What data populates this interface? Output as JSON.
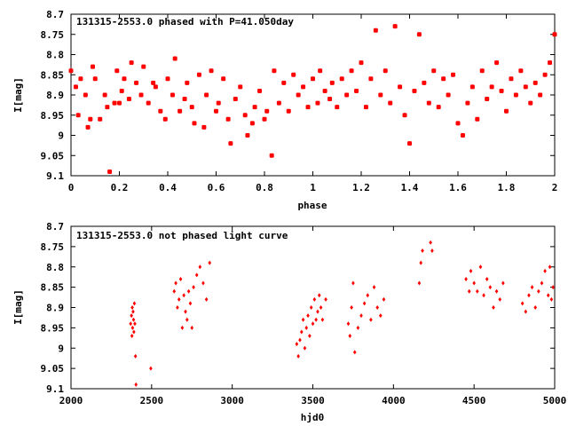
{
  "colors": {
    "point": "#ff0000",
    "axis": "#000000",
    "background": "#ffffff"
  },
  "chart_data": [
    {
      "type": "scatter",
      "title": "131315-2553.0 phased with P=41.050day",
      "xlabel": "phase",
      "ylabel": "I[mag]",
      "xlim": [
        0,
        2
      ],
      "ylim": [
        9.1,
        8.7
      ],
      "y_inverted": true,
      "grid": false,
      "legend": "none",
      "marker": "filled circle",
      "xticks": [
        "0",
        "0.2",
        "0.4",
        "0.6",
        "0.8",
        "1",
        "1.2",
        "1.4",
        "1.6",
        "1.8",
        "2"
      ],
      "yticks": [
        "8.7",
        "8.75",
        "8.8",
        "8.85",
        "8.9",
        "8.95",
        "9",
        "9.05",
        "9.1"
      ],
      "series": [
        {
          "x": [
            0.0,
            0.02,
            0.03,
            0.04,
            0.06,
            0.07,
            0.08,
            0.09,
            0.1,
            0.12,
            0.14,
            0.15,
            0.16,
            0.18,
            0.19,
            0.2,
            0.21,
            0.22,
            0.24,
            0.25,
            0.27,
            0.29,
            0.3,
            0.32,
            0.34,
            0.35,
            0.37,
            0.39,
            0.4,
            0.42,
            0.43,
            0.45,
            0.47,
            0.48,
            0.5,
            0.51,
            0.53,
            0.55,
            0.56,
            0.58,
            0.6,
            0.61,
            0.63,
            0.65,
            0.66,
            0.68,
            0.7,
            0.72,
            0.73,
            0.75,
            0.76,
            0.78,
            0.8,
            0.81,
            0.83,
            0.84,
            0.86,
            0.88,
            0.9,
            0.92,
            0.94,
            0.96,
            0.98,
            1.0,
            1.02,
            1.03,
            1.05,
            1.07,
            1.08,
            1.1,
            1.12,
            1.14,
            1.16,
            1.18,
            1.2,
            1.22,
            1.24,
            1.26,
            1.28,
            1.3,
            1.32,
            1.34,
            1.36,
            1.38,
            1.4,
            1.42,
            1.44,
            1.46,
            1.48,
            1.5,
            1.52,
            1.54,
            1.56,
            1.58,
            1.6,
            1.62,
            1.64,
            1.66,
            1.68,
            1.7,
            1.72,
            1.74,
            1.76,
            1.78,
            1.8,
            1.82,
            1.84,
            1.86,
            1.88,
            1.9,
            1.92,
            1.94,
            1.96,
            1.98,
            2.0
          ],
          "y": [
            8.84,
            8.88,
            8.95,
            8.86,
            8.9,
            8.98,
            8.96,
            8.83,
            8.86,
            8.96,
            8.9,
            8.93,
            9.09,
            8.92,
            8.84,
            8.92,
            8.89,
            8.86,
            8.91,
            8.82,
            8.87,
            8.9,
            8.83,
            8.92,
            8.87,
            8.88,
            8.94,
            8.96,
            8.86,
            8.9,
            8.81,
            8.94,
            8.91,
            8.87,
            8.93,
            8.97,
            8.85,
            8.98,
            8.9,
            8.84,
            8.94,
            8.92,
            8.86,
            8.96,
            9.02,
            8.91,
            8.88,
            8.95,
            9.0,
            8.97,
            8.93,
            8.89,
            8.96,
            8.94,
            9.05,
            8.84,
            8.92,
            8.87,
            8.94,
            8.85,
            8.9,
            8.88,
            8.93,
            8.86,
            8.92,
            8.84,
            8.89,
            8.91,
            8.87,
            8.93,
            8.86,
            8.9,
            8.84,
            8.89,
            8.82,
            8.93,
            8.86,
            8.74,
            8.9,
            8.84,
            8.92,
            8.73,
            8.88,
            8.95,
            9.02,
            8.89,
            8.75,
            8.87,
            8.92,
            8.84,
            8.93,
            8.86,
            8.9,
            8.85,
            8.97,
            9.0,
            8.92,
            8.88,
            8.96,
            8.84,
            8.91,
            8.88,
            8.82,
            8.89,
            8.94,
            8.86,
            8.9,
            8.84,
            8.88,
            8.92,
            8.87,
            8.9,
            8.85,
            8.82,
            8.75
          ]
        }
      ]
    },
    {
      "type": "scatter",
      "title": "131315-2553.0 not phased light curve",
      "xlabel": "hjd0",
      "ylabel": "I[mag]",
      "xlim": [
        2000,
        5000
      ],
      "ylim": [
        9.1,
        8.7
      ],
      "y_inverted": true,
      "grid": false,
      "legend": "none",
      "marker": "small diamond",
      "xticks": [
        "2000",
        "2500",
        "3000",
        "3500",
        "4000",
        "4500",
        "5000"
      ],
      "yticks": [
        "8.7",
        "8.75",
        "8.8",
        "8.85",
        "8.9",
        "8.95",
        "9",
        "9.05",
        "9.1"
      ],
      "series": [
        {
          "x": [
            2370,
            2375,
            2378,
            2380,
            2382,
            2385,
            2388,
            2390,
            2393,
            2396,
            2400,
            2403,
            2495,
            2640,
            2650,
            2660,
            2670,
            2680,
            2690,
            2700,
            2710,
            2720,
            2730,
            2740,
            2750,
            2760,
            2780,
            2800,
            2820,
            2840,
            2860,
            3400,
            3410,
            3420,
            3430,
            3440,
            3450,
            3460,
            3470,
            3480,
            3490,
            3500,
            3510,
            3520,
            3530,
            3540,
            3550,
            3560,
            3580,
            3720,
            3730,
            3740,
            3750,
            3760,
            3780,
            3800,
            3820,
            3840,
            3860,
            3880,
            3900,
            3920,
            3940,
            4160,
            4170,
            4180,
            4230,
            4240,
            4450,
            4470,
            4480,
            4500,
            4520,
            4540,
            4560,
            4580,
            4600,
            4620,
            4640,
            4660,
            4680,
            4800,
            4820,
            4840,
            4860,
            4880,
            4900,
            4920,
            4940,
            4960,
            4970,
            4980,
            4990
          ],
          "y": [
            8.94,
            8.92,
            8.97,
            8.9,
            8.95,
            8.91,
            8.93,
            8.96,
            8.89,
            8.94,
            9.02,
            9.09,
            9.05,
            8.86,
            8.84,
            8.9,
            8.88,
            8.83,
            8.95,
            8.87,
            8.91,
            8.93,
            8.86,
            8.89,
            8.95,
            8.85,
            8.82,
            8.8,
            8.84,
            8.88,
            8.79,
            8.99,
            9.02,
            8.98,
            8.96,
            8.93,
            9.0,
            8.95,
            8.92,
            8.97,
            8.9,
            8.94,
            8.88,
            8.93,
            8.91,
            8.87,
            8.9,
            8.93,
            8.88,
            8.94,
            8.97,
            8.9,
            8.84,
            9.01,
            8.95,
            8.92,
            8.89,
            8.87,
            8.93,
            8.85,
            8.9,
            8.92,
            8.88,
            8.84,
            8.79,
            8.76,
            8.74,
            8.76,
            8.83,
            8.86,
            8.81,
            8.84,
            8.86,
            8.8,
            8.87,
            8.83,
            8.85,
            8.9,
            8.86,
            8.88,
            8.84,
            8.89,
            8.91,
            8.87,
            8.85,
            8.9,
            8.86,
            8.84,
            8.81,
            8.87,
            8.8,
            8.88,
            8.85
          ]
        }
      ]
    }
  ]
}
